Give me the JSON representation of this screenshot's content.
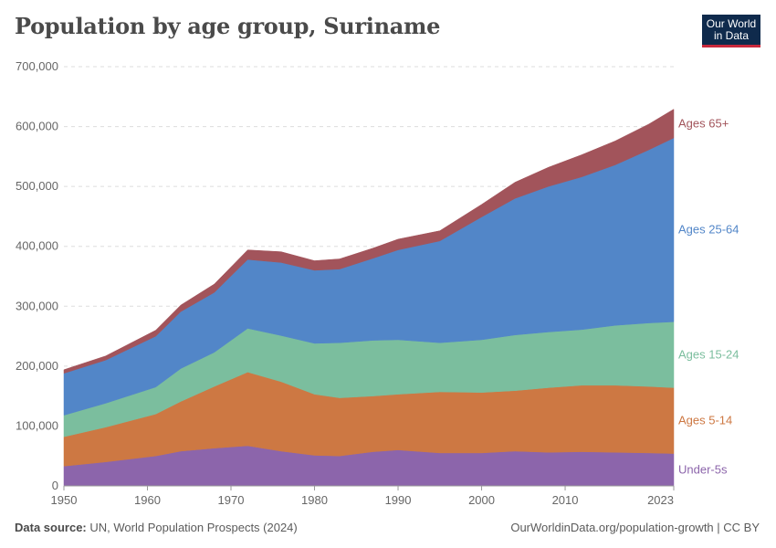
{
  "title": "Population by age group, Suriname",
  "logo": {
    "line1": "Our World",
    "line2": "in Data"
  },
  "footer": {
    "source_label": "Data source:",
    "source_text": "UN, World Population Prospects (2024)",
    "link": "OurWorldinData.org/population-growth | CC BY"
  },
  "chart_data": {
    "type": "area",
    "stacked": true,
    "title": "Population by age group, Suriname",
    "xlabel": "",
    "ylabel": "",
    "xlim": [
      1950,
      2023
    ],
    "ylim": [
      0,
      700000
    ],
    "y_ticks": [
      0,
      100000,
      200000,
      300000,
      400000,
      500000,
      600000,
      700000
    ],
    "y_tick_labels": [
      "0",
      "100,000",
      "200,000",
      "300,000",
      "400,000",
      "500,000",
      "600,000",
      "700,000"
    ],
    "x_ticks": [
      1950,
      1960,
      1970,
      1980,
      1990,
      2000,
      2010,
      2023
    ],
    "x_tick_labels": [
      "1950",
      "1960",
      "1970",
      "1980",
      "1990",
      "2000",
      "2010",
      "2023"
    ],
    "grid": true,
    "x": [
      1950,
      1955,
      1961,
      1964,
      1968,
      1972,
      1976,
      1980,
      1983,
      1987,
      1990,
      1995,
      2000,
      2004,
      2008,
      2012,
      2016,
      2020,
      2023
    ],
    "series": [
      {
        "name": "Under-5s",
        "label": "Under-5s",
        "color": "#8c65ab",
        "values": [
          33000,
          40000,
          50000,
          58000,
          63000,
          67000,
          58000,
          51000,
          50000,
          57000,
          60000,
          55000,
          55000,
          58000,
          56000,
          57000,
          56000,
          55000,
          54000
        ]
      },
      {
        "name": "Ages 5-14",
        "label": "Ages 5-14",
        "color": "#cd7843",
        "values": [
          49000,
          58000,
          70000,
          83000,
          103000,
          123000,
          116000,
          102000,
          97000,
          93000,
          93000,
          102000,
          101000,
          101000,
          108000,
          111000,
          112000,
          111000,
          110000
        ]
      },
      {
        "name": "Ages 15-24",
        "label": "Ages 15-24",
        "color": "#7bbe9e",
        "values": [
          36000,
          40000,
          45000,
          55000,
          57000,
          73000,
          77000,
          85000,
          92000,
          93000,
          91000,
          82000,
          88000,
          93000,
          93000,
          93000,
          100000,
          106000,
          110000
        ]
      },
      {
        "name": "Ages 25-64",
        "label": "Ages 25-64",
        "color": "#5286c8",
        "values": [
          70000,
          72000,
          85000,
          95000,
          100000,
          115000,
          122000,
          122000,
          123000,
          137000,
          150000,
          170000,
          205000,
          228000,
          243000,
          255000,
          268000,
          289000,
          307000
        ]
      },
      {
        "name": "Ages 65+",
        "label": "Ages 65+",
        "color": "#a2545b",
        "values": [
          6000,
          7000,
          10000,
          11000,
          14000,
          16000,
          18000,
          16000,
          17000,
          17000,
          18000,
          17000,
          21000,
          27000,
          32000,
          37000,
          40000,
          43000,
          48000
        ]
      }
    ]
  }
}
